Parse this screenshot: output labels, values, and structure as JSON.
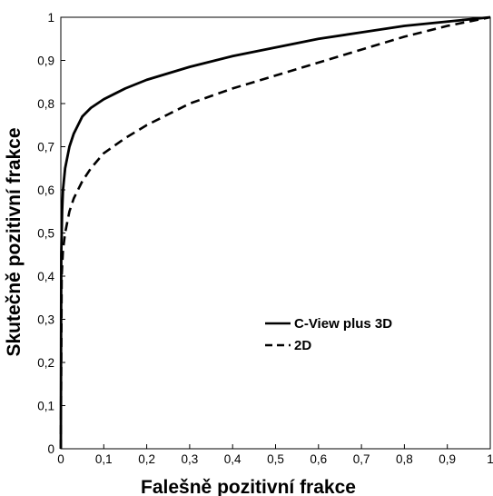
{
  "chart_data": {
    "type": "line",
    "xlabel": "Falešně pozitivní frakce",
    "ylabel": "Skutečně pozitivní frakce",
    "xlim": [
      0,
      1
    ],
    "ylim": [
      0,
      1
    ],
    "x_tick_labels": [
      "0",
      "0,1",
      "0,2",
      "0,3",
      "0,4",
      "0,5",
      "0,6",
      "0,7",
      "0,8",
      "0,9",
      "1"
    ],
    "y_tick_labels": [
      "0",
      "0,1",
      "0,2",
      "0,3",
      "0,4",
      "0,5",
      "0,6",
      "0,7",
      "0,8",
      "0,9",
      "1"
    ],
    "grid": false,
    "legend_position": "lower-right",
    "series": [
      {
        "name": "C-View plus 3D",
        "line_style": "solid",
        "color": "#000000",
        "x": [
          0,
          0.001,
          0.003,
          0.005,
          0.01,
          0.02,
          0.03,
          0.05,
          0.07,
          0.1,
          0.15,
          0.2,
          0.25,
          0.3,
          0.4,
          0.5,
          0.6,
          0.7,
          0.8,
          0.9,
          1
        ],
        "y": [
          0,
          0.45,
          0.55,
          0.6,
          0.65,
          0.7,
          0.73,
          0.77,
          0.79,
          0.81,
          0.835,
          0.855,
          0.87,
          0.885,
          0.91,
          0.93,
          0.95,
          0.965,
          0.98,
          0.99,
          1
        ]
      },
      {
        "name": "2D",
        "line_style": "dashed",
        "color": "#000000",
        "x": [
          0,
          0.002,
          0.005,
          0.01,
          0.02,
          0.03,
          0.05,
          0.07,
          0.1,
          0.15,
          0.2,
          0.25,
          0.3,
          0.4,
          0.5,
          0.6,
          0.7,
          0.8,
          0.9,
          1
        ],
        "y": [
          0,
          0.4,
          0.46,
          0.5,
          0.55,
          0.58,
          0.62,
          0.65,
          0.685,
          0.72,
          0.75,
          0.775,
          0.8,
          0.835,
          0.865,
          0.895,
          0.925,
          0.955,
          0.98,
          1
        ]
      }
    ]
  }
}
